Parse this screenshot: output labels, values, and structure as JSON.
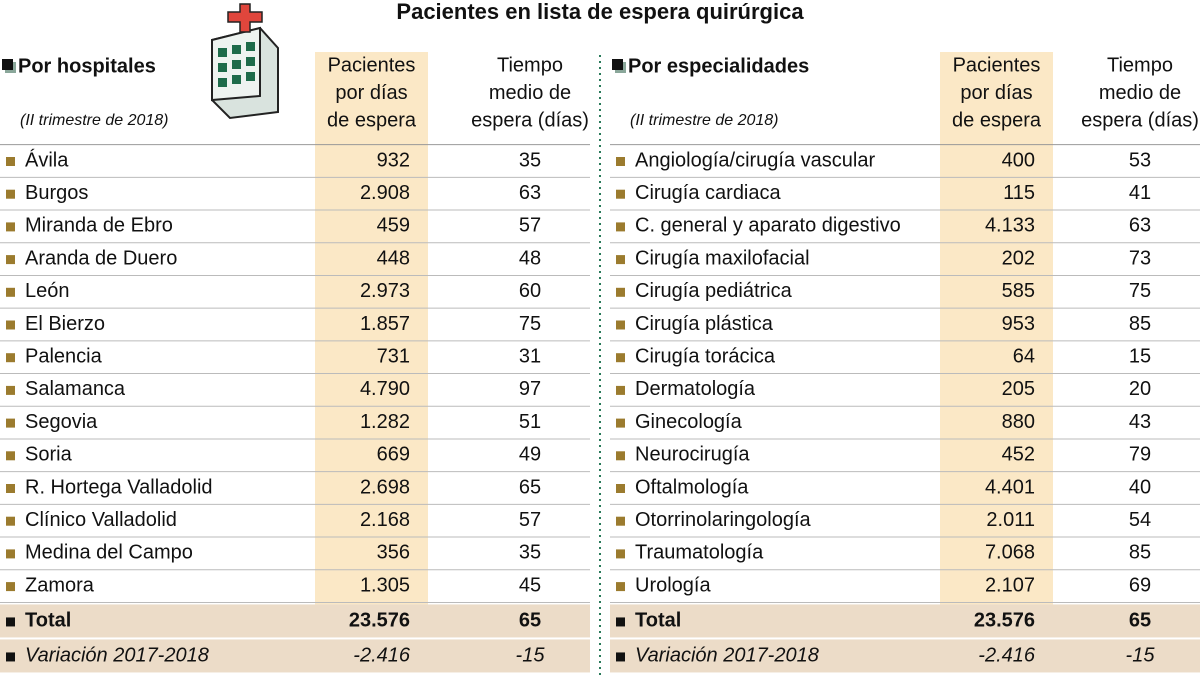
{
  "title": "Pacientes en lista de espera quirúrgica",
  "tables": [
    {
      "heading": "Por hospitales",
      "subtitle": "(II trimestre de 2018)",
      "columns": [
        [
          "Pacientes",
          "por días",
          "de espera"
        ],
        [
          "Tiempo",
          "medio de",
          "espera (días)"
        ]
      ],
      "rows": [
        [
          "Ávila",
          "932",
          "35"
        ],
        [
          "Burgos",
          "2.908",
          "63"
        ],
        [
          "Miranda de Ebro",
          "459",
          "57"
        ],
        [
          "Aranda de Duero",
          "448",
          "48"
        ],
        [
          "León",
          "2.973",
          "60"
        ],
        [
          "El Bierzo",
          "1.857",
          "75"
        ],
        [
          "Palencia",
          "731",
          "31"
        ],
        [
          "Salamanca",
          "4.790",
          "97"
        ],
        [
          "Segovia",
          "1.282",
          "51"
        ],
        [
          "Soria",
          "669",
          "49"
        ],
        [
          "R. Hortega Valladolid",
          "2.698",
          "65"
        ],
        [
          "Clínico Valladolid",
          "2.168",
          "57"
        ],
        [
          "Medina del Campo",
          "356",
          "35"
        ],
        [
          "Zamora",
          "1.305",
          "45"
        ]
      ],
      "total": [
        "Total",
        "23.576",
        "65"
      ],
      "variation": [
        "Variación 2017-2018",
        "-2.416",
        "-15"
      ]
    },
    {
      "heading": "Por especialidades",
      "subtitle": "(II trimestre de 2018)",
      "columns": [
        [
          "Pacientes",
          "por días",
          "de espera"
        ],
        [
          "Tiempo",
          "medio de",
          "espera (días)"
        ]
      ],
      "rows": [
        [
          "Angiología/cirugía vascular",
          "400",
          "53"
        ],
        [
          "Cirugía cardiaca",
          "115",
          "41"
        ],
        [
          "C. general y aparato digestivo",
          "4.133",
          "63"
        ],
        [
          "Cirugía maxilofacial",
          "202",
          "73"
        ],
        [
          "Cirugía pediátrica",
          "585",
          "75"
        ],
        [
          "Cirugía plástica",
          "953",
          "85"
        ],
        [
          "Cirugía torácica",
          "64",
          "15"
        ],
        [
          "Dermatología",
          "205",
          "20"
        ],
        [
          "Ginecología",
          "880",
          "43"
        ],
        [
          "Neurocirugía",
          "452",
          "79"
        ],
        [
          "Oftalmología",
          "4.401",
          "40"
        ],
        [
          "Otorrinolaringología",
          "2.011",
          "54"
        ],
        [
          "Traumatología",
          "7.068",
          "85"
        ],
        [
          "Urología",
          "2.107",
          "69"
        ]
      ],
      "total": [
        "Total",
        "23.576",
        "65"
      ],
      "variation": [
        "Variación 2017-2018",
        "-2.416",
        "-15"
      ]
    }
  ]
}
